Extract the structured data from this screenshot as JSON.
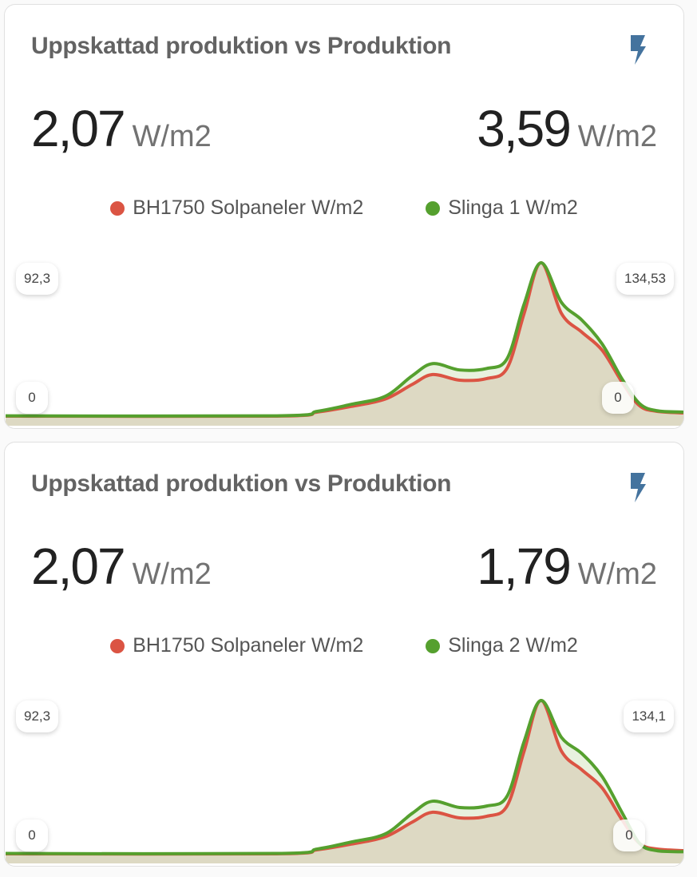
{
  "colors": {
    "red": "#db5443",
    "green": "#55a02e",
    "red_fill": "#ddd9c3",
    "green_fill": "#e8f1de",
    "icon": "#44739e"
  },
  "cards": [
    {
      "title": "Uppskattad produktion vs Produktion",
      "icon": "flash-icon",
      "left_value": "2,07",
      "left_unit": "W/m2",
      "right_value": "3,59",
      "right_unit": "W/m2",
      "legend": [
        "BH1750 Solpaneler W/m2",
        "Slinga 1 W/m2"
      ],
      "axis": {
        "left_max": "92,3",
        "left_min": "0",
        "right_max": "134,53",
        "right_min": "0"
      },
      "chart_data": {
        "type": "area",
        "x": [
          0,
          40,
          46,
          51,
          56,
          60,
          63,
          67,
          71,
          74,
          76.5,
          79,
          82,
          85,
          88,
          91,
          93.5,
          96,
          100
        ],
        "series": [
          {
            "name": "BH1750 Solpaneler W/m2",
            "axis": "left",
            "ylim": [
              0,
              92.3
            ],
            "values": [
              0.5,
              0.5,
              2.9,
              6.3,
              10.7,
              19.5,
              25.4,
              22,
              23,
              29.3,
              62,
              92.3,
              62,
              50.8,
              40,
              20.5,
              6.8,
              3.4,
              2.4
            ]
          },
          {
            "name": "Slinga 1 W/m2",
            "axis": "right",
            "ylim": [
              0,
              134.53
            ],
            "values": [
              1,
              1,
              4.9,
              11,
              18,
              36,
              46.5,
              41,
              42.3,
              51,
              98.5,
              134.53,
              100,
              84.6,
              63.8,
              32.6,
              11.8,
              5.5,
              4.2
            ]
          }
        ]
      }
    },
    {
      "title": "Uppskattad produktion vs Produktion",
      "icon": "flash-icon",
      "left_value": "2,07",
      "left_unit": "W/m2",
      "right_value": "1,79",
      "right_unit": "W/m2",
      "legend": [
        "BH1750 Solpaneler W/m2",
        "Slinga 2 W/m2"
      ],
      "axis": {
        "left_max": "92,3",
        "left_min": "0",
        "right_max": "134,1",
        "right_min": "0"
      },
      "chart_data": {
        "type": "area",
        "x": [
          0,
          40,
          46,
          51,
          56,
          60,
          63,
          67,
          71,
          74,
          76.5,
          79,
          82,
          85,
          88,
          91,
          93.5,
          96,
          100
        ],
        "series": [
          {
            "name": "BH1750 Solpaneler W/m2",
            "axis": "left",
            "ylim": [
              0,
              92.3
            ],
            "values": [
              0.5,
              0.5,
              2.9,
              6.3,
              10.7,
              19.5,
              25.4,
              22,
              23,
              29.3,
              62,
              92.3,
              62,
              50.8,
              40,
              20.5,
              6.8,
              3.4,
              2.4
            ]
          },
          {
            "name": "Slinga 2 W/m2",
            "axis": "right",
            "ylim": [
              0,
              134.1
            ],
            "values": [
              1,
              1,
              4.9,
              11,
              18,
              36,
              46.5,
              41,
              42.3,
              51,
              98.5,
              134.1,
              102,
              88,
              68,
              36,
              10,
              3.5,
              2.5
            ]
          }
        ]
      }
    }
  ]
}
